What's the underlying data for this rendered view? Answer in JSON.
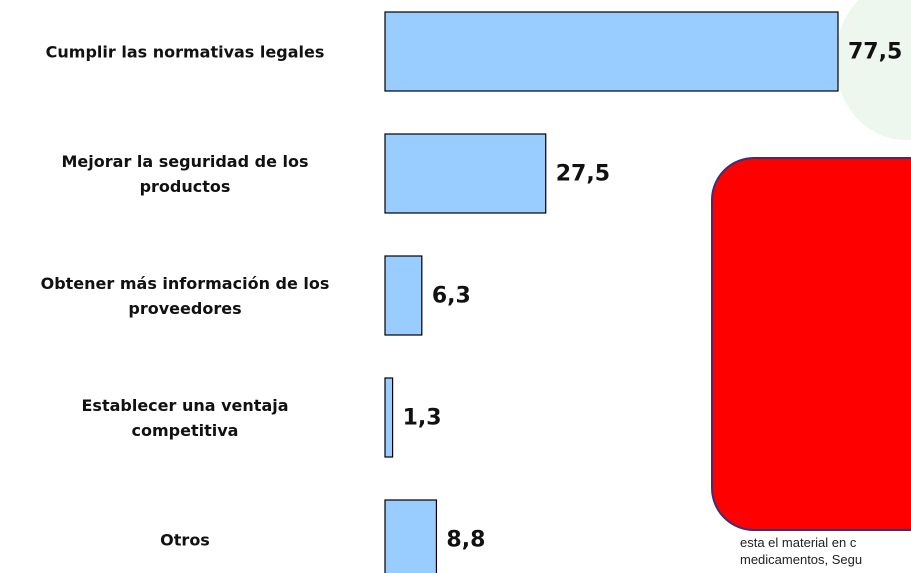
{
  "chart_data": {
    "type": "bar",
    "orientation": "horizontal",
    "categories": [
      "Cumplir las normativas legales",
      "Mejorar la seguridad de los\nproductos",
      "Obtener más información de los\nproveedores",
      "Establecer una ventaja\ncompetitiva",
      "Otros"
    ],
    "values": [
      77.5,
      27.5,
      6.3,
      1.3,
      8.8
    ],
    "value_labels": [
      "77,5",
      "27,5",
      "6,3",
      "1,3",
      "8,8"
    ],
    "color": "#99ccff",
    "annotations": [
      "esta el material en c",
      "medicamentos, Segu"
    ]
  }
}
